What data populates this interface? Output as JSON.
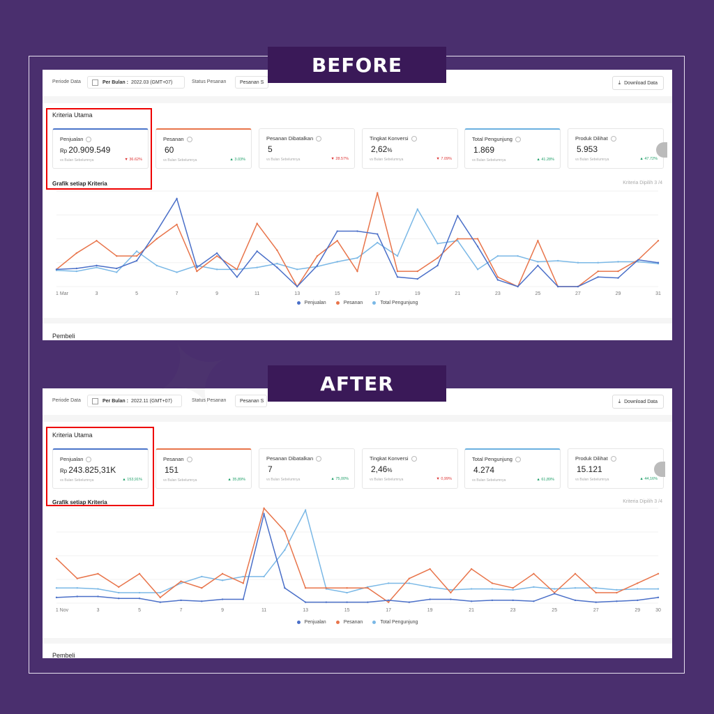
{
  "labels": {
    "before": "BEFORE",
    "after": "AFTER"
  },
  "before": {
    "topbar": {
      "periode_label": "Periode Data",
      "per_bulan": "Per Bulan :",
      "period_value": "2022.03 (GMT+07)",
      "status_label": "Status Pesanan",
      "status_value": "Pesanan S",
      "download": "Download Data"
    },
    "kriteria_title": "Kriteria Utama",
    "cards": [
      {
        "title": "Penjualan",
        "prefix": "Rp",
        "value": "20.909.549",
        "suffix": "",
        "vs": "vs Bulan Sebelumnya",
        "change": "36.62%",
        "dir": "down",
        "accent": "#4a74c9"
      },
      {
        "title": "Pesanan",
        "prefix": "",
        "value": "60",
        "suffix": "",
        "vs": "vs Bulan Sebelumnya",
        "change": "3.03%",
        "dir": "up",
        "accent": "#e8744a"
      },
      {
        "title": "Pesanan Dibatalkan",
        "prefix": "",
        "value": "5",
        "suffix": "",
        "vs": "vs Bulan Sebelumnya",
        "change": "28.57%",
        "dir": "down",
        "accent": ""
      },
      {
        "title": "Tingkat Konversi",
        "prefix": "",
        "value": "2,62",
        "suffix": "%",
        "vs": "vs Bulan Sebelumnya",
        "change": "7.09%",
        "dir": "down",
        "accent": ""
      },
      {
        "title": "Total Pengunjung",
        "prefix": "",
        "value": "1.869",
        "suffix": "",
        "vs": "vs Bulan Sebelumnya",
        "change": "41.28%",
        "dir": "up",
        "accent": "#6ab0e0"
      },
      {
        "title": "Produk Dilihat",
        "prefix": "",
        "value": "5.953",
        "suffix": "",
        "vs": "vs Bulan Sebelumnya",
        "change": "47.72%",
        "dir": "up",
        "accent": ""
      }
    ],
    "chart_title": "Grafik setiap Kriteria",
    "dipilih": "Kriteria Dipilih 3 /4",
    "pembeli": "Pembeli"
  },
  "after": {
    "topbar": {
      "periode_label": "Periode Data",
      "per_bulan": "Per Bulan :",
      "period_value": "2022.11 (GMT+07)",
      "status_label": "Status Pesanan",
      "status_value": "Pesanan S",
      "download": "Download Data"
    },
    "kriteria_title": "Kriteria Utama",
    "cards": [
      {
        "title": "Penjualan",
        "prefix": "Rp",
        "value": "243.825,31K",
        "suffix": "",
        "vs": "vs Bulan Sebelumnya",
        "change": "153,91%",
        "dir": "up",
        "accent": "#4a74c9"
      },
      {
        "title": "Pesanan",
        "prefix": "",
        "value": "151",
        "suffix": "",
        "vs": "vs Bulan Sebelumnya",
        "change": "35,89%",
        "dir": "up",
        "accent": "#e8744a"
      },
      {
        "title": "Pesanan Dibatalkan",
        "prefix": "",
        "value": "7",
        "suffix": "",
        "vs": "vs Bulan Sebelumnya",
        "change": "75,00%",
        "dir": "up",
        "accent": ""
      },
      {
        "title": "Tingkat Konversi",
        "prefix": "",
        "value": "2,46",
        "suffix": "%",
        "vs": "vs Bulan Sebelumnya",
        "change": "0,99%",
        "dir": "down",
        "accent": ""
      },
      {
        "title": "Total Pengunjung",
        "prefix": "",
        "value": "4.274",
        "suffix": "",
        "vs": "vs Bulan Sebelumnya",
        "change": "61,89%",
        "dir": "up",
        "accent": "#6ab0e0"
      },
      {
        "title": "Produk Dilihat",
        "prefix": "",
        "value": "15.121",
        "suffix": "",
        "vs": "vs Bulan Sebelumnya",
        "change": "44,16%",
        "dir": "up",
        "accent": ""
      }
    ],
    "chart_title": "Grafik setiap Kriteria",
    "dipilih": "Kriteria Dipilih 3 /4",
    "pembeli": "Pembeli"
  },
  "colors": {
    "penjualan": "#4a6fc8",
    "pesanan": "#e8744a",
    "pengunjung": "#7ab8e6",
    "tag_bg": "#3a1958",
    "page_bg": "#4a2f6e",
    "highlight": "#e00000"
  },
  "chart_data": [
    {
      "type": "line",
      "x_start_label": "1 Mar",
      "x": [
        1,
        2,
        3,
        4,
        5,
        6,
        7,
        8,
        9,
        10,
        11,
        12,
        13,
        14,
        15,
        16,
        17,
        18,
        19,
        20,
        21,
        22,
        23,
        24,
        25,
        26,
        27,
        28,
        29,
        30,
        31
      ],
      "x_tick_labels": [
        "1 Mar",
        "3",
        "5",
        "7",
        "9",
        "11",
        "13",
        "15",
        "17",
        "19",
        "21",
        "23",
        "25",
        "27",
        "29",
        "31"
      ],
      "ylim": [
        0,
        100
      ],
      "legend": "bottom",
      "series": [
        {
          "name": "Penjualan",
          "values": [
            18,
            19,
            22,
            19,
            27,
            58,
            92,
            20,
            35,
            10,
            37,
            20,
            0,
            22,
            58,
            58,
            55,
            10,
            8,
            22,
            74,
            42,
            7,
            0,
            22,
            0,
            0,
            10,
            9,
            28,
            25
          ]
        },
        {
          "name": "Pesanan",
          "values": [
            18,
            35,
            48,
            32,
            32,
            50,
            65,
            16,
            32,
            18,
            66,
            38,
            0,
            32,
            48,
            16,
            98,
            16,
            16,
            30,
            50,
            50,
            10,
            0,
            48,
            0,
            0,
            16,
            16,
            28,
            48
          ]
        },
        {
          "name": "Total Pengunjung",
          "values": [
            17,
            16,
            20,
            15,
            37,
            22,
            15,
            22,
            18,
            18,
            20,
            24,
            18,
            21,
            26,
            30,
            46,
            32,
            81,
            45,
            48,
            18,
            32,
            32,
            26,
            27,
            25,
            25,
            26,
            26,
            24
          ]
        }
      ]
    },
    {
      "type": "line",
      "x_start_label": "1 Nov",
      "x": [
        1,
        2,
        3,
        4,
        5,
        6,
        7,
        8,
        9,
        10,
        11,
        12,
        13,
        14,
        15,
        16,
        17,
        18,
        19,
        20,
        21,
        22,
        23,
        24,
        25,
        26,
        27,
        28,
        29,
        30
      ],
      "x_tick_labels": [
        "1 Nov",
        "3",
        "5",
        "7",
        "9",
        "11",
        "13",
        "15",
        "17",
        "19",
        "21",
        "23",
        "25",
        "27",
        "29",
        "30"
      ],
      "ylim": [
        0,
        100
      ],
      "legend": "bottom",
      "series": [
        {
          "name": "Penjualan",
          "values": [
            6,
            7,
            7,
            5,
            5,
            1,
            3,
            2,
            4,
            4,
            94,
            16,
            1,
            1,
            1,
            1,
            3,
            1,
            4,
            4,
            2,
            3,
            3,
            2,
            10,
            3,
            1,
            2,
            3,
            6
          ]
        },
        {
          "name": "Pesanan",
          "values": [
            47,
            26,
            31,
            17,
            31,
            6,
            23,
            16,
            31,
            21,
            100,
            76,
            16,
            16,
            16,
            16,
            1,
            26,
            36,
            11,
            36,
            21,
            16,
            31,
            11,
            31,
            11,
            11,
            21,
            31
          ]
        },
        {
          "name": "Total Pengunjung",
          "values": [
            16,
            16,
            15,
            11,
            11,
            11,
            21,
            28,
            24,
            28,
            28,
            56,
            98,
            15,
            11,
            17,
            21,
            21,
            17,
            14,
            15,
            15,
            14,
            17,
            15,
            16,
            16,
            14,
            15,
            15
          ]
        }
      ]
    }
  ]
}
